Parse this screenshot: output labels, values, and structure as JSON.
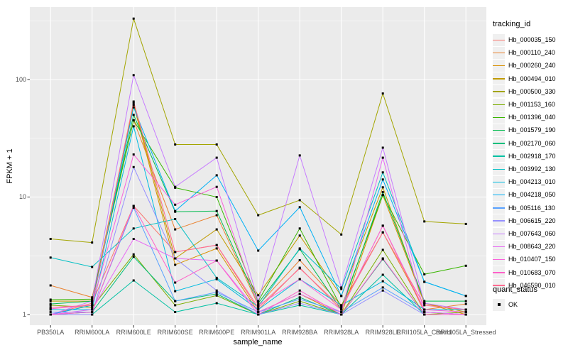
{
  "chart": {
    "y_axis_title": "FPKM + 1",
    "x_axis_title": "sample_name",
    "legend_tracking_title": "tracking_id",
    "legend_quant_title": "quant_status",
    "legend_quant_label": "OK"
  },
  "chart_data": {
    "type": "line",
    "title": "",
    "xlabel": "sample_name",
    "ylabel": "FPKM + 1",
    "y_scale": "log10",
    "y_ticks": [
      1,
      10,
      100
    ],
    "y_minor": [
      3.162,
      31.62,
      316.2
    ],
    "ylim": [
      0.81,
      415
    ],
    "grid": true,
    "legend_position": "right",
    "point_shape": "filled-square",
    "point_color": "#000000",
    "panel_bg": "#EBEBEB",
    "grid_color": "#FFFFFF",
    "tick_text_color": "#4d4d4d",
    "quant_status": "OK",
    "x": [
      "PB350LA",
      "RRIM600LA",
      "RRIM600LE",
      "RRIM600SE",
      "RRIM600PE",
      "RRIM901LA",
      "RRIM928BA",
      "RRIM928LA",
      "RRIM928LE",
      "RRII105LA_Control",
      "RRII105LA_Stressed"
    ],
    "series": [
      {
        "name": "Hb_000035_150",
        "color": "#F8766D",
        "values": [
          1.0,
          1.25,
          8.4,
          3.4,
          3.9,
          1.1,
          2.5,
          1.1,
          5.7,
          1.05,
          1.0
        ]
      },
      {
        "name": "Hb_000110_240",
        "color": "#EA8331",
        "values": [
          1.77,
          1.4,
          45,
          5.3,
          7.0,
          1.2,
          2.9,
          1.2,
          5.0,
          1.1,
          1.23
        ]
      },
      {
        "name": "Hb_000260_240",
        "color": "#D89000",
        "values": [
          1.0,
          1.2,
          61,
          2.65,
          3.65,
          1.05,
          1.5,
          1.0,
          10.4,
          1.25,
          1.0
        ]
      },
      {
        "name": "Hb_000494_010",
        "color": "#C09B00",
        "values": [
          1.3,
          1.3,
          63,
          3.0,
          5.3,
          1.46,
          4.7,
          1.44,
          12.1,
          1.25,
          1.05
        ]
      },
      {
        "name": "Hb_000500_330",
        "color": "#A3A500",
        "values": [
          4.4,
          4.1,
          330,
          28,
          28,
          7.0,
          9.4,
          4.8,
          76,
          6.2,
          5.9
        ]
      },
      {
        "name": "Hb_001153_160",
        "color": "#7CAE00",
        "values": [
          1.2,
          1.15,
          3.25,
          1.2,
          1.45,
          1.0,
          1.3,
          1.0,
          3.55,
          1.0,
          1.05
        ]
      },
      {
        "name": "Hb_001396_040",
        "color": "#39B600",
        "values": [
          1.34,
          1.35,
          45,
          12.0,
          10.0,
          1.3,
          5.4,
          1.15,
          10.4,
          2.2,
          2.6
        ]
      },
      {
        "name": "Hb_001579_190",
        "color": "#00BB4E",
        "values": [
          1.23,
          1.3,
          50,
          7.5,
          7.6,
          1.25,
          3.6,
          1.1,
          11.0,
          1.3,
          1.3
        ]
      },
      {
        "name": "Hb_002170_060",
        "color": "#00BF7D",
        "values": [
          1.0,
          1.05,
          3.1,
          1.3,
          1.5,
          1.0,
          1.4,
          1.0,
          2.96,
          1.0,
          1.0
        ]
      },
      {
        "name": "Hb_002918_170",
        "color": "#00C1A3",
        "values": [
          1.0,
          1.0,
          1.95,
          1.05,
          1.25,
          1.0,
          1.2,
          1.0,
          2.18,
          1.0,
          1.0
        ]
      },
      {
        "name": "Hb_003992_130",
        "color": "#00BFC4",
        "values": [
          3.05,
          2.54,
          5.4,
          6.5,
          2.05,
          1.17,
          3.65,
          1.65,
          16.2,
          1.9,
          1.44
        ]
      },
      {
        "name": "Hb_004213_010",
        "color": "#00BAE0",
        "values": [
          1.1,
          1.1,
          40,
          1.58,
          2.0,
          1.1,
          2.0,
          1.2,
          1.92,
          1.1,
          1.1
        ]
      },
      {
        "name": "Hb_004218_050",
        "color": "#00B0F6",
        "values": [
          1.0,
          1.2,
          58,
          7.6,
          15.3,
          3.5,
          8.2,
          1.44,
          14.1,
          1.9,
          1.44
        ]
      },
      {
        "name": "Hb_005116_130",
        "color": "#58A1FF",
        "values": [
          1.05,
          1.05,
          8.1,
          1.3,
          1.55,
          1.05,
          1.35,
          1.05,
          1.7,
          1.05,
          1.0
        ]
      },
      {
        "name": "Hb_006615_220",
        "color": "#9590FF",
        "values": [
          1.0,
          1.0,
          18,
          3.0,
          1.6,
          1.0,
          1.25,
          1.0,
          1.6,
          1.0,
          1.0
        ]
      },
      {
        "name": "Hb_007643_060",
        "color": "#C77CFF",
        "values": [
          1.0,
          1.3,
          109,
          12.2,
          21.6,
          1.3,
          22.6,
          1.7,
          26.3,
          1.25,
          1.1
        ]
      },
      {
        "name": "Hb_008643_220",
        "color": "#E76BF3",
        "values": [
          1.0,
          1.1,
          4.4,
          3.0,
          2.88,
          1.05,
          1.5,
          1.05,
          21.6,
          1.05,
          1.0
        ]
      },
      {
        "name": "Hb_010407_150",
        "color": "#FA62DB",
        "values": [
          1.12,
          1.2,
          23,
          8.6,
          12.2,
          1.2,
          2.0,
          1.1,
          5.7,
          1.1,
          1.05
        ]
      },
      {
        "name": "Hb_010683_070",
        "color": "#FF61C9",
        "values": [
          1.0,
          1.05,
          8.4,
          1.87,
          2.88,
          1.0,
          1.6,
          1.0,
          3.0,
          1.0,
          1.0
        ]
      },
      {
        "name": "Hb_046590_010",
        "color": "#FF6C91",
        "values": [
          1.15,
          1.2,
          65,
          3.4,
          3.9,
          1.15,
          2.47,
          1.15,
          5.0,
          1.2,
          1.1
        ]
      }
    ]
  }
}
